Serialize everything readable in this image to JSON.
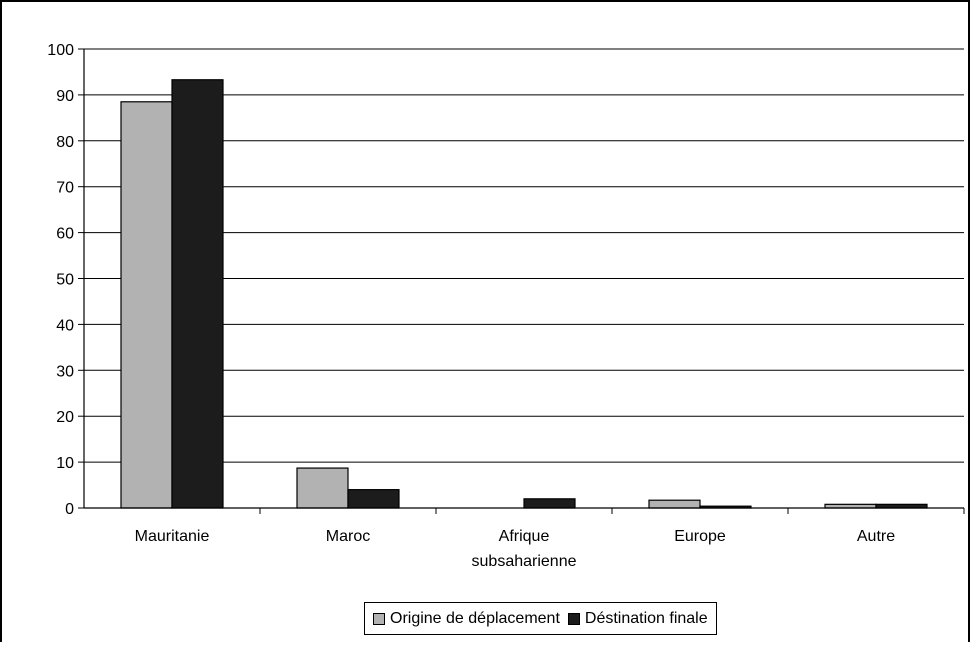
{
  "chart_data": {
    "type": "bar",
    "categories": [
      "Mauritanie",
      "Maroc",
      "Afrique subsaharienne",
      "Europe",
      "Autre"
    ],
    "category_lines": [
      [
        "Mauritanie"
      ],
      [
        "Maroc"
      ],
      [
        "Afrique",
        "subsaharienne"
      ],
      [
        "Europe"
      ],
      [
        "Autre"
      ]
    ],
    "series": [
      {
        "name": "Origine de déplacement",
        "values": [
          88.5,
          8.7,
          0,
          1.7,
          0.8
        ],
        "color": "#b2b2b2"
      },
      {
        "name": "Déstination finale",
        "values": [
          93.3,
          4.0,
          2.0,
          0.4,
          0.8
        ],
        "color": "#1c1c1c"
      }
    ],
    "yticks": [
      0,
      10,
      20,
      30,
      40,
      50,
      60,
      70,
      80,
      90,
      100
    ],
    "ylim": [
      0,
      100
    ],
    "grid": true,
    "legend_placement": "bottom"
  },
  "legend": {
    "items": [
      {
        "label": "Origine de déplacement",
        "color": "#b2b2b2"
      },
      {
        "label": "Déstination finale",
        "color": "#1c1c1c"
      }
    ]
  }
}
